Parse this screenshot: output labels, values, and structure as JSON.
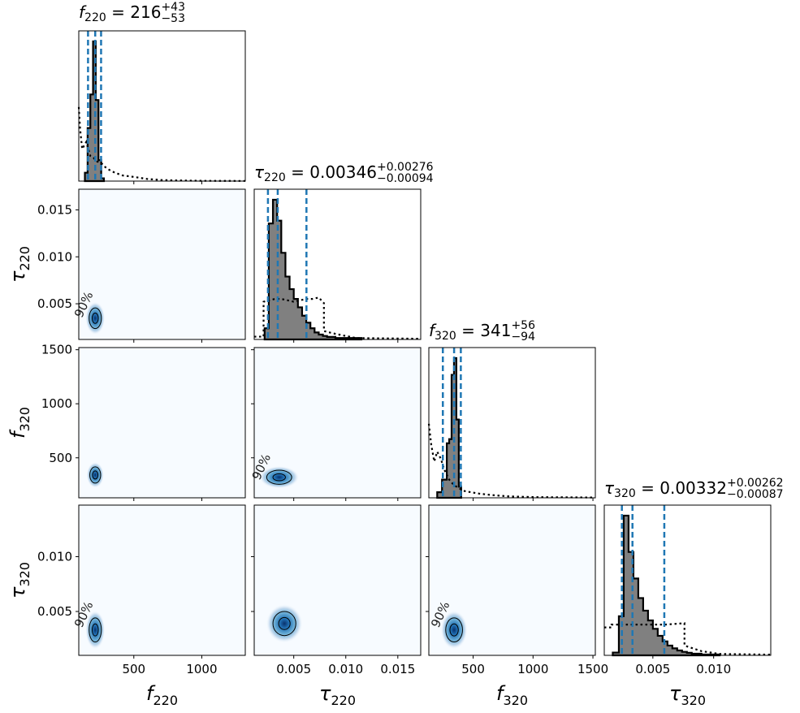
{
  "figure": {
    "params": [
      {
        "sym": "f",
        "sub": "220",
        "median": "216",
        "plus": "+43",
        "minus": "−53"
      },
      {
        "sym": "τ",
        "sub": "220",
        "median": "0.00346",
        "plus": "+0.00276",
        "minus": "−0.00094"
      },
      {
        "sym": "f",
        "sub": "320",
        "median": "341",
        "plus": "+56",
        "minus": "−94"
      },
      {
        "sym": "τ",
        "sub": "320",
        "median": "0.00332",
        "plus": "+0.00262",
        "minus": "−0.00087"
      }
    ],
    "title_separator": " = ",
    "contour_label": "90%"
  },
  "chart_data": {
    "type": "corner",
    "parameters": [
      "f_220",
      "tau_220",
      "f_320",
      "tau_320"
    ],
    "ranges": [
      [
        95,
        1320
      ],
      [
        0.0012,
        0.0172
      ],
      [
        130,
        1520
      ],
      [
        0.001,
        0.0147
      ]
    ],
    "ticks": [
      {
        "values": [
          500,
          1000
        ],
        "labels": [
          "500",
          "1000"
        ]
      },
      {
        "values": [
          0.005,
          0.01,
          0.015
        ],
        "labels": [
          "0.005",
          "0.010",
          "0.015"
        ]
      },
      {
        "values": [
          500,
          1000,
          1500
        ],
        "labels": [
          "500",
          "1000",
          "1500"
        ]
      },
      {
        "values": [
          0.005,
          0.01
        ],
        "labels": [
          "0.005",
          "0.010"
        ]
      }
    ],
    "quantile_lines": [
      [
        163,
        216,
        259
      ],
      [
        0.00252,
        0.00346,
        0.00622
      ],
      [
        247,
        341,
        397
      ],
      [
        0.00245,
        0.00332,
        0.00594
      ]
    ],
    "posterior_hist": [
      {
        "edges": [
          140,
          160,
          180,
          200,
          220,
          240,
          260,
          280
        ],
        "counts": [
          0.06,
          0.38,
          0.62,
          1.0,
          0.58,
          0.15,
          0.02
        ]
      },
      {
        "edges": [
          0.0022,
          0.0026,
          0.003,
          0.0034,
          0.0038,
          0.0042,
          0.0046,
          0.005,
          0.0054,
          0.0058,
          0.0062,
          0.0066,
          0.007,
          0.0074,
          0.0078,
          0.0082,
          0.009,
          0.0115
        ],
        "counts": [
          0.08,
          0.83,
          1.0,
          0.85,
          0.62,
          0.45,
          0.36,
          0.29,
          0.23,
          0.17,
          0.12,
          0.08,
          0.05,
          0.035,
          0.025,
          0.018,
          0.01
        ]
      },
      {
        "edges": [
          200,
          240,
          280,
          300,
          320,
          340,
          360,
          380,
          400
        ],
        "counts": [
          0.04,
          0.13,
          0.39,
          0.42,
          0.88,
          1.0,
          0.56,
          0.08
        ]
      },
      {
        "edges": [
          0.0017,
          0.0022,
          0.0026,
          0.003,
          0.0034,
          0.0038,
          0.0042,
          0.0046,
          0.005,
          0.0054,
          0.0058,
          0.0062,
          0.0066,
          0.007,
          0.0074,
          0.0078,
          0.0082,
          0.009,
          0.0105
        ],
        "counts": [
          0.02,
          0.28,
          1.0,
          0.74,
          0.55,
          0.41,
          0.32,
          0.25,
          0.19,
          0.14,
          0.1,
          0.07,
          0.05,
          0.035,
          0.025,
          0.018,
          0.012,
          0.006
        ]
      }
    ],
    "prior_curve": [
      [
        [
          95,
          0.53
        ],
        [
          105,
          0.37
        ],
        [
          120,
          0.23
        ],
        [
          150,
          0.28
        ],
        [
          180,
          0.18
        ],
        [
          200,
          0.17
        ],
        [
          230,
          0.14
        ],
        [
          260,
          0.13
        ],
        [
          290,
          0.1
        ],
        [
          320,
          0.08
        ],
        [
          360,
          0.06
        ],
        [
          420,
          0.04
        ],
        [
          500,
          0.03
        ],
        [
          600,
          0.015
        ],
        [
          700,
          0.008
        ],
        [
          800,
          0.005
        ],
        [
          1000,
          0.002
        ],
        [
          1320,
          0.001
        ]
      ],
      [
        [
          0.0012,
          0.02
        ],
        [
          0.0021,
          0.02
        ],
        [
          0.0021,
          0.27
        ],
        [
          0.0026,
          0.28
        ],
        [
          0.0032,
          0.29
        ],
        [
          0.0038,
          0.29
        ],
        [
          0.0044,
          0.28
        ],
        [
          0.005,
          0.27
        ],
        [
          0.0056,
          0.28
        ],
        [
          0.0062,
          0.29
        ],
        [
          0.0068,
          0.29
        ],
        [
          0.0074,
          0.3
        ],
        [
          0.0079,
          0.26
        ],
        [
          0.0079,
          0.06
        ],
        [
          0.009,
          0.04
        ],
        [
          0.011,
          0.01
        ],
        [
          0.0172,
          0.005
        ]
      ],
      [
        [
          130,
          0.53
        ],
        [
          150,
          0.38
        ],
        [
          175,
          0.26
        ],
        [
          200,
          0.33
        ],
        [
          230,
          0.28
        ],
        [
          260,
          0.2
        ],
        [
          300,
          0.13
        ],
        [
          340,
          0.09
        ],
        [
          380,
          0.07
        ],
        [
          420,
          0.05
        ],
        [
          480,
          0.04
        ],
        [
          550,
          0.03
        ],
        [
          650,
          0.02
        ],
        [
          800,
          0.01
        ],
        [
          1000,
          0.005
        ],
        [
          1520,
          0.002
        ]
      ],
      [
        [
          0.001,
          0.2
        ],
        [
          0.0016,
          0.2
        ],
        [
          0.0016,
          0.22
        ],
        [
          0.003,
          0.22
        ],
        [
          0.0045,
          0.22
        ],
        [
          0.006,
          0.22
        ],
        [
          0.0076,
          0.23
        ],
        [
          0.0076,
          0.07
        ],
        [
          0.009,
          0.03
        ],
        [
          0.0105,
          0.01
        ],
        [
          0.0147,
          0.005
        ]
      ]
    ],
    "density_2d": [
      {
        "row": 1,
        "col": 0,
        "center": [
          216,
          0.00346
        ],
        "spread": [
          45,
          0.0011
        ],
        "level": "90%"
      },
      {
        "row": 2,
        "col": 0,
        "center": [
          216,
          341
        ],
        "spread": [
          40,
          75
        ]
      },
      {
        "row": 2,
        "col": 1,
        "center": [
          0.0036,
          320
        ],
        "spread": [
          0.0012,
          65
        ],
        "level": "90%"
      },
      {
        "row": 3,
        "col": 0,
        "center": [
          216,
          0.00332
        ],
        "spread": [
          45,
          0.0011
        ],
        "level": "90%"
      },
      {
        "row": 3,
        "col": 1,
        "center": [
          0.0041,
          0.0039
        ],
        "spread": [
          0.0011,
          0.0011
        ]
      },
      {
        "row": 3,
        "col": 2,
        "center": [
          341,
          0.00332
        ],
        "spread": [
          70,
          0.0011
        ],
        "level": "90%"
      }
    ],
    "colors": {
      "hist_fill": "#808080",
      "quantile": "#1f77b4",
      "density_peak": "#08306b",
      "density_light": "#c6dbef",
      "background": "#f7fbff"
    }
  }
}
